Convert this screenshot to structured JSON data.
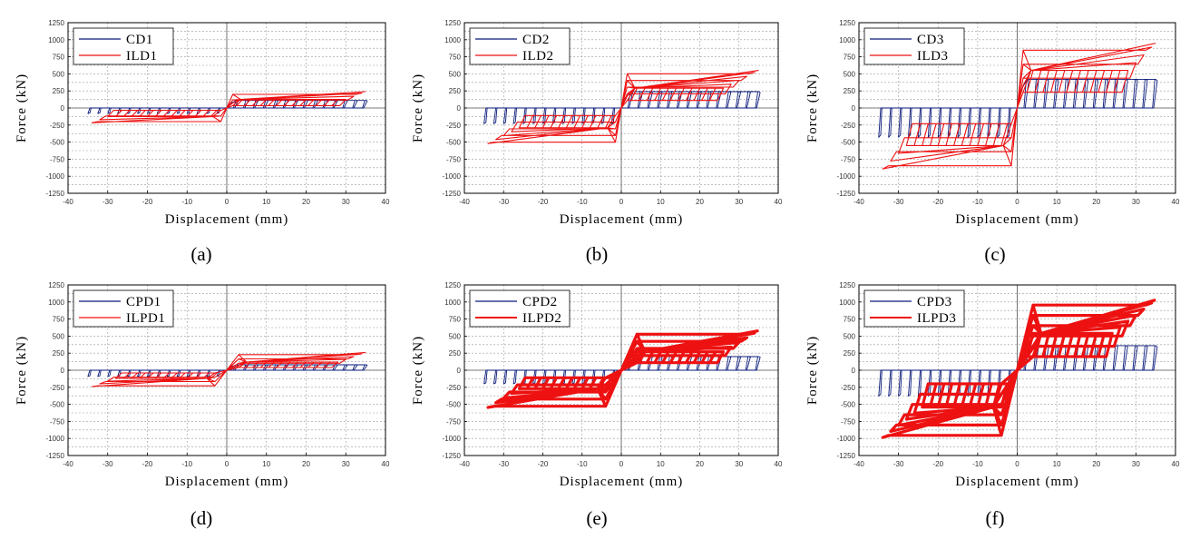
{
  "figure": {
    "panels": [
      {
        "caption": "(a)",
        "chart_data": {
          "type": "line",
          "xlabel": "Displacement (mm)",
          "ylabel": "Force (kN)",
          "xlim": [
            -40,
            40
          ],
          "ylim": [
            -1250,
            1250
          ],
          "xticks": [
            -40,
            -30,
            -20,
            -10,
            0,
            10,
            20,
            30,
            40
          ],
          "yticks": [
            -1250,
            -1000,
            -750,
            -500,
            -250,
            0,
            250,
            500,
            750,
            1000,
            1250
          ],
          "grid": true,
          "legend": "top-left",
          "series": [
            {
              "name": "CD1",
              "color": "#0a1a7a",
              "shape": "rect",
              "ymax": 110,
              "ymin": -80
            },
            {
              "name": "ILD1",
              "color": "#ee1111",
              "shape": "flag",
              "end": 240,
              "plat_hi": 125,
              "plat_lo": 35,
              "xt": 30,
              "shift": 1.5,
              "bold": false
            }
          ]
        }
      },
      {
        "caption": "(b)",
        "chart_data": {
          "type": "line",
          "xlabel": "Displacement (mm)",
          "ylabel": "Force (kN)",
          "xlim": [
            -40,
            40
          ],
          "ylim": [
            -1250,
            1250
          ],
          "xticks": [
            -40,
            -30,
            -20,
            -10,
            0,
            10,
            20,
            30,
            40
          ],
          "yticks": [
            -1250,
            -1000,
            -750,
            -500,
            -250,
            0,
            250,
            500,
            750,
            1000,
            1250
          ],
          "grid": true,
          "legend": "top-left",
          "series": [
            {
              "name": "CD2",
              "color": "#0a1a7a",
              "shape": "rect",
              "ymax": 240,
              "ymin": -230
            },
            {
              "name": "ILD2",
              "color": "#ee1111",
              "shape": "flag",
              "end": 550,
              "plat_hi": 290,
              "plat_lo": 110,
              "xt": 26,
              "shift": 1.5,
              "bold": false
            }
          ]
        }
      },
      {
        "caption": "(c)",
        "chart_data": {
          "type": "line",
          "xlabel": "Displacement (mm)",
          "ylabel": "Force (kN)",
          "xlim": [
            -40,
            40
          ],
          "ylim": [
            -1250,
            1250
          ],
          "xticks": [
            -40,
            -30,
            -20,
            -10,
            0,
            10,
            20,
            30,
            40
          ],
          "yticks": [
            -1250,
            -1000,
            -750,
            -500,
            -250,
            0,
            250,
            500,
            750,
            1000,
            1250
          ],
          "grid": true,
          "legend": "top-left",
          "series": [
            {
              "name": "CD3",
              "color": "#0a1a7a",
              "shape": "rect",
              "ymax": 420,
              "ymin": -430
            },
            {
              "name": "ILD3",
              "color": "#ee1111",
              "shape": "flag",
              "end": 950,
              "plat_hi": 550,
              "plat_lo": 230,
              "xt": 28,
              "shift": 1.5,
              "bold": false
            }
          ]
        }
      },
      {
        "caption": "(d)",
        "chart_data": {
          "type": "line",
          "xlabel": "Displacement (mm)",
          "ylabel": "Force (kN)",
          "xlim": [
            -40,
            40
          ],
          "ylim": [
            -1250,
            1250
          ],
          "xticks": [
            -40,
            -30,
            -20,
            -10,
            0,
            10,
            20,
            30,
            40
          ],
          "yticks": [
            -1250,
            -1000,
            -750,
            -500,
            -250,
            0,
            250,
            500,
            750,
            1000,
            1250
          ],
          "grid": true,
          "legend": "top-left",
          "series": [
            {
              "name": "CPD1",
              "color": "#0a1a7a",
              "shape": "rect",
              "ymax": 80,
              "ymin": -90
            },
            {
              "name": "ILPD1",
              "color": "#ee1111",
              "shape": "flag",
              "end": 260,
              "plat_hi": 120,
              "plat_lo": 40,
              "xt": 28,
              "shift": 3,
              "bold": false
            }
          ]
        }
      },
      {
        "caption": "(e)",
        "chart_data": {
          "type": "line",
          "xlabel": "Displacement (mm)",
          "ylabel": "Force (kN)",
          "xlim": [
            -40,
            40
          ],
          "ylim": [
            -1250,
            1250
          ],
          "xticks": [
            -40,
            -30,
            -20,
            -10,
            0,
            10,
            20,
            30,
            40
          ],
          "yticks": [
            -1250,
            -1000,
            -750,
            -500,
            -250,
            0,
            250,
            500,
            750,
            1000,
            1250
          ],
          "grid": true,
          "legend": "top-left",
          "series": [
            {
              "name": "CPD2",
              "color": "#0a1a7a",
              "shape": "rect",
              "ymax": 200,
              "ymin": -200
            },
            {
              "name": "ILPD2",
              "color": "#ee1111",
              "shape": "flag",
              "end": 580,
              "plat_hi": 270,
              "plat_lo": 110,
              "xt": 26,
              "shift": 4,
              "bold": true
            }
          ]
        }
      },
      {
        "caption": "(f)",
        "chart_data": {
          "type": "line",
          "xlabel": "Displacement (mm)",
          "ylabel": "Force (kN)",
          "xlim": [
            -40,
            40
          ],
          "ylim": [
            -1250,
            1250
          ],
          "xticks": [
            -40,
            -30,
            -20,
            -10,
            0,
            10,
            20,
            30,
            40
          ],
          "yticks": [
            -1250,
            -1000,
            -750,
            -500,
            -250,
            0,
            250,
            500,
            750,
            1000,
            1250
          ],
          "grid": true,
          "legend": "top-left",
          "series": [
            {
              "name": "CPD3",
              "color": "#0a1a7a",
              "shape": "rect",
              "ymax": 360,
              "ymin": -380
            },
            {
              "name": "ILPD3",
              "color": "#ee1111",
              "shape": "flag",
              "end": 1030,
              "plat_hi": 540,
              "plat_lo": 200,
              "xt": 24,
              "shift": 4,
              "bold": true
            }
          ]
        }
      }
    ]
  }
}
